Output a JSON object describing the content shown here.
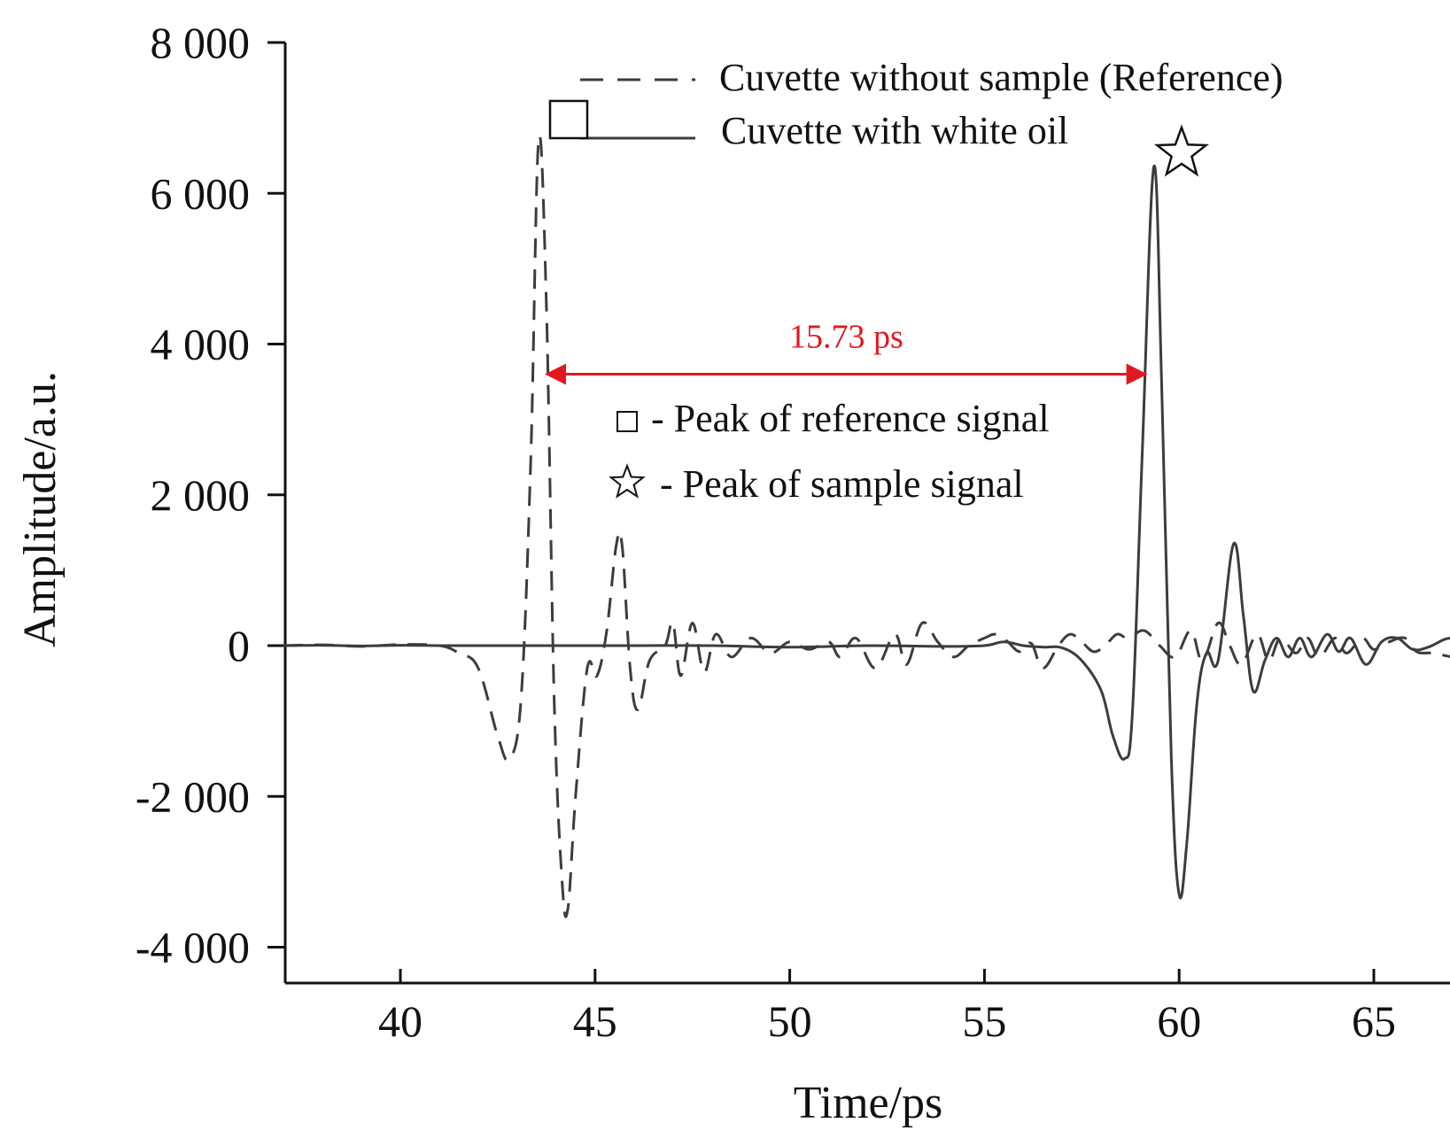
{
  "chart_data": {
    "type": "line",
    "xlabel": "Time/ps",
    "ylabel": "Amplitude/a.u.",
    "xlim": [
      37,
      67
    ],
    "ylim": [
      -4500,
      8000
    ],
    "xticks": [
      40,
      45,
      50,
      55,
      60,
      65
    ],
    "xtick_labels": [
      "40",
      "45",
      "50",
      "55",
      "60",
      "65"
    ],
    "yticks": [
      8000,
      6000,
      4000,
      2000,
      0,
      -2000,
      -4000
    ],
    "ytick_labels": [
      "8 000",
      "6 000",
      "4 000",
      "2 000",
      "0",
      "-2 000",
      "-4 000"
    ],
    "legend_position": "top-right",
    "series": [
      {
        "name": "Cuvette without sample (Reference)",
        "style": "dashed",
        "color": "#3a3d3f",
        "points": [
          [
            37,
            0
          ],
          [
            38,
            10
          ],
          [
            39,
            -10
          ],
          [
            40,
            15
          ],
          [
            41,
            0
          ],
          [
            41.5,
            -100
          ],
          [
            42.0,
            -300
          ],
          [
            42.5,
            -1200
          ],
          [
            42.8,
            -1500
          ],
          [
            43.1,
            -700
          ],
          [
            43.35,
            2500
          ],
          [
            43.55,
            6700
          ],
          [
            43.75,
            4500
          ],
          [
            43.95,
            -700
          ],
          [
            44.15,
            -3100
          ],
          [
            44.3,
            -3500
          ],
          [
            44.5,
            -2000
          ],
          [
            44.8,
            -300
          ],
          [
            45.05,
            -400
          ],
          [
            45.3,
            200
          ],
          [
            45.55,
            1350
          ],
          [
            45.7,
            1300
          ],
          [
            45.9,
            -300
          ],
          [
            46.1,
            -850
          ],
          [
            46.4,
            -200
          ],
          [
            46.8,
            0
          ],
          [
            47.0,
            300
          ],
          [
            47.2,
            -400
          ],
          [
            47.5,
            300
          ],
          [
            47.8,
            -350
          ],
          [
            48.1,
            150
          ],
          [
            48.5,
            -150
          ],
          [
            49.0,
            100
          ],
          [
            49.5,
            -100
          ],
          [
            50.0,
            50
          ],
          [
            50.5,
            -50
          ],
          [
            51.0,
            50
          ],
          [
            51.3,
            -150
          ],
          [
            51.7,
            100
          ],
          [
            52.2,
            -300
          ],
          [
            52.7,
            150
          ],
          [
            53.0,
            -250
          ],
          [
            53.4,
            300
          ],
          [
            53.8,
            50
          ],
          [
            54.2,
            -150
          ],
          [
            54.6,
            0
          ],
          [
            55.0,
            100
          ],
          [
            55.3,
            150
          ],
          [
            55.6,
            50
          ],
          [
            55.9,
            -80
          ],
          [
            56.2,
            30
          ],
          [
            56.5,
            -300
          ],
          [
            56.9,
            0
          ],
          [
            57.2,
            150
          ],
          [
            57.5,
            50
          ],
          [
            57.8,
            -80
          ],
          [
            58.1,
            0
          ],
          [
            58.4,
            150
          ],
          [
            58.7,
            100
          ],
          [
            59.1,
            200
          ],
          [
            59.5,
            0
          ],
          [
            59.9,
            -150
          ],
          [
            60.3,
            200
          ],
          [
            60.6,
            -200
          ],
          [
            61.0,
            300
          ],
          [
            61.3,
            0
          ],
          [
            61.6,
            -250
          ],
          [
            62.0,
            150
          ],
          [
            62.3,
            -200
          ],
          [
            62.6,
            100
          ],
          [
            63.0,
            -100
          ],
          [
            63.3,
            100
          ],
          [
            63.6,
            -150
          ],
          [
            64.0,
            100
          ],
          [
            64.3,
            -100
          ],
          [
            64.7,
            100
          ],
          [
            65.0,
            -50
          ],
          [
            65.4,
            50
          ],
          [
            65.8,
            100
          ],
          [
            66.1,
            -80
          ],
          [
            66.5,
            -100
          ],
          [
            67.0,
            -150
          ]
        ]
      },
      {
        "name": "Cuvette with white oil",
        "style": "solid",
        "color": "#3a3d3f",
        "points": [
          [
            37,
            0
          ],
          [
            38,
            5
          ],
          [
            39,
            -5
          ],
          [
            40,
            5
          ],
          [
            41,
            0
          ],
          [
            42,
            0
          ],
          [
            44,
            0
          ],
          [
            46,
            0
          ],
          [
            48,
            0
          ],
          [
            50,
            -20
          ],
          [
            52,
            0
          ],
          [
            54,
            -10
          ],
          [
            55,
            0
          ],
          [
            55.5,
            50
          ],
          [
            56,
            0
          ],
          [
            56.5,
            -20
          ],
          [
            57,
            -30
          ],
          [
            57.5,
            -200
          ],
          [
            58.0,
            -600
          ],
          [
            58.3,
            -1200
          ],
          [
            58.6,
            -1500
          ],
          [
            58.8,
            -900
          ],
          [
            59.05,
            2500
          ],
          [
            59.35,
            6350
          ],
          [
            59.55,
            3500
          ],
          [
            59.8,
            -1500
          ],
          [
            60.0,
            -3300
          ],
          [
            60.2,
            -2600
          ],
          [
            60.45,
            -800
          ],
          [
            60.7,
            -100
          ],
          [
            61.0,
            -200
          ],
          [
            61.4,
            1350
          ],
          [
            61.65,
            400
          ],
          [
            61.9,
            -600
          ],
          [
            62.2,
            -200
          ],
          [
            62.5,
            100
          ],
          [
            62.8,
            -150
          ],
          [
            63.1,
            100
          ],
          [
            63.4,
            -150
          ],
          [
            63.8,
            150
          ],
          [
            64.1,
            -80
          ],
          [
            64.4,
            100
          ],
          [
            64.8,
            -250
          ],
          [
            65.2,
            50
          ],
          [
            65.6,
            100
          ],
          [
            66.0,
            -50
          ],
          [
            66.4,
            -20
          ],
          [
            66.8,
            80
          ],
          [
            67.0,
            100
          ]
        ]
      }
    ],
    "annotations": {
      "measurement_text": "15.73 ps",
      "measurement_color": "#e0191e",
      "arrow_from_x": 43.55,
      "arrow_to_x": 59.35,
      "arrow_y": 3600,
      "note_reference": "- Peak of reference signal",
      "note_sample": "- Peak of sample signal",
      "reference_marker": "square",
      "sample_marker": "star"
    }
  }
}
